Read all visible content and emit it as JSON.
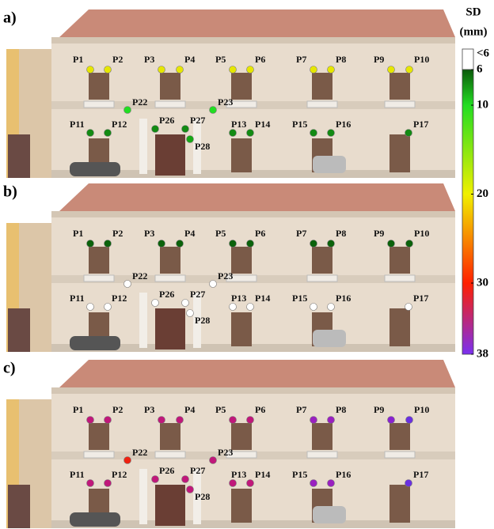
{
  "panels": [
    {
      "label": "a)",
      "points": [
        {
          "name": "P1",
          "color": "#e6e600"
        },
        {
          "name": "P2",
          "color": "#e6e600"
        },
        {
          "name": "P3",
          "color": "#e6e600"
        },
        {
          "name": "P4",
          "color": "#e6e600"
        },
        {
          "name": "P5",
          "color": "#e6e600"
        },
        {
          "name": "P6",
          "color": "#e6e600"
        },
        {
          "name": "P7",
          "color": "#e6e600"
        },
        {
          "name": "P8",
          "color": "#e6e600"
        },
        {
          "name": "P9",
          "color": "#e6e600"
        },
        {
          "name": "P10",
          "color": "#e6e600"
        },
        {
          "name": "P22",
          "color": "#22dd22"
        },
        {
          "name": "P23",
          "color": "#22dd22"
        },
        {
          "name": "P11",
          "color": "#138a13"
        },
        {
          "name": "P12",
          "color": "#138a13"
        },
        {
          "name": "P26",
          "color": "#138a13"
        },
        {
          "name": "P27",
          "color": "#138a13"
        },
        {
          "name": "P28",
          "color": "#16a816"
        },
        {
          "name": "P13",
          "color": "#138a13"
        },
        {
          "name": "P14",
          "color": "#138a13"
        },
        {
          "name": "P15",
          "color": "#138a13"
        },
        {
          "name": "P16",
          "color": "#138a13"
        },
        {
          "name": "P17",
          "color": "#138a13"
        }
      ]
    },
    {
      "label": "b)",
      "points": [
        {
          "name": "P1",
          "color": "#0b620b"
        },
        {
          "name": "P2",
          "color": "#0b620b"
        },
        {
          "name": "P3",
          "color": "#0b620b"
        },
        {
          "name": "P4",
          "color": "#0b620b"
        },
        {
          "name": "P5",
          "color": "#0b620b"
        },
        {
          "name": "P6",
          "color": "#0b620b"
        },
        {
          "name": "P7",
          "color": "#0b620b"
        },
        {
          "name": "P8",
          "color": "#0b620b"
        },
        {
          "name": "P9",
          "color": "#0b620b"
        },
        {
          "name": "P10",
          "color": "#0b620b"
        },
        {
          "name": "P22",
          "color": "#ffffff"
        },
        {
          "name": "P23",
          "color": "#ffffff"
        },
        {
          "name": "P11",
          "color": "#ffffff"
        },
        {
          "name": "P12",
          "color": "#ffffff"
        },
        {
          "name": "P26",
          "color": "#ffffff"
        },
        {
          "name": "P27",
          "color": "#ffffff"
        },
        {
          "name": "P28",
          "color": "#ffffff"
        },
        {
          "name": "P13",
          "color": "#ffffff"
        },
        {
          "name": "P14",
          "color": "#ffffff"
        },
        {
          "name": "P15",
          "color": "#ffffff"
        },
        {
          "name": "P16",
          "color": "#ffffff"
        },
        {
          "name": "P17",
          "color": "#ffffff"
        }
      ]
    },
    {
      "label": "c)",
      "points": [
        {
          "name": "P1",
          "color": "#c0187a"
        },
        {
          "name": "P2",
          "color": "#c0187a"
        },
        {
          "name": "P3",
          "color": "#c0187a"
        },
        {
          "name": "P4",
          "color": "#c0187a"
        },
        {
          "name": "P5",
          "color": "#c0187a"
        },
        {
          "name": "P6",
          "color": "#c0187a"
        },
        {
          "name": "P7",
          "color": "#9a20c0"
        },
        {
          "name": "P8",
          "color": "#9a20c0"
        },
        {
          "name": "P9",
          "color": "#8a22d0"
        },
        {
          "name": "P10",
          "color": "#6a30e0"
        },
        {
          "name": "P22",
          "color": "#ee2211"
        },
        {
          "name": "P23",
          "color": "#c0187a"
        },
        {
          "name": "P11",
          "color": "#c0187a"
        },
        {
          "name": "P12",
          "color": "#c0187a"
        },
        {
          "name": "P26",
          "color": "#c0187a"
        },
        {
          "name": "P27",
          "color": "#c0187a"
        },
        {
          "name": "P28",
          "color": "#c0187a"
        },
        {
          "name": "P13",
          "color": "#c0187a"
        },
        {
          "name": "P14",
          "color": "#c0187a"
        },
        {
          "name": "P15",
          "color": "#9a20c0"
        },
        {
          "name": "P16",
          "color": "#9a20c0"
        },
        {
          "name": "P17",
          "color": "#6a30e0"
        }
      ]
    }
  ],
  "colorbar": {
    "title": "SD",
    "unit": "(mm)",
    "under_label": "<6",
    "under_color": "#ffffff",
    "lim": [
      6,
      38
    ],
    "ticks": [
      6,
      10,
      20,
      30,
      38
    ],
    "stops": [
      {
        "value": 6,
        "color": "#0b5a0b"
      },
      {
        "value": 10,
        "color": "#22dd22"
      },
      {
        "value": 20,
        "color": "#f0f000"
      },
      {
        "value": 30,
        "color": "#ff2000"
      },
      {
        "value": 38,
        "color": "#7a30f0"
      }
    ]
  }
}
